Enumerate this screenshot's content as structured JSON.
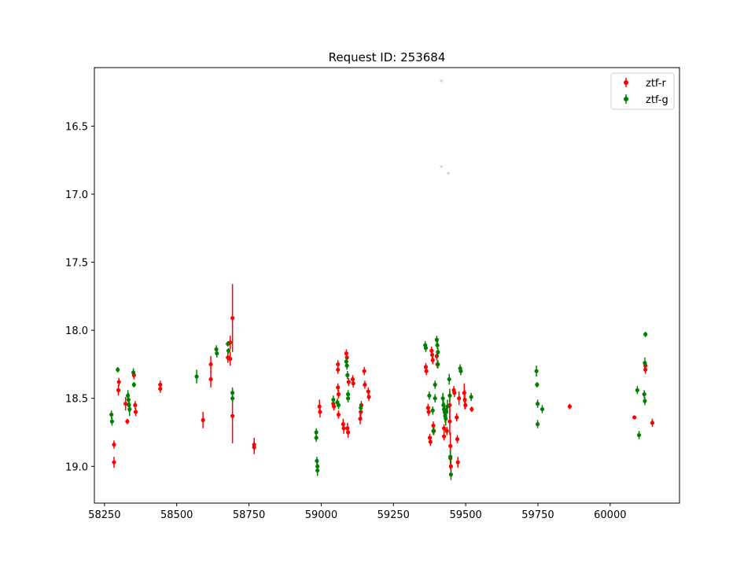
{
  "chart_data": {
    "type": "scatter",
    "title": "Request ID: 253684",
    "xlabel": "",
    "ylabel": "",
    "xlim": [
      58215,
      60240
    ],
    "ylim": [
      19.27,
      16.07
    ],
    "y_inverted": true,
    "xticks": [
      58250,
      58500,
      58750,
      59000,
      59250,
      59500,
      59750,
      60000
    ],
    "yticks": [
      16.5,
      17.0,
      17.5,
      18.0,
      18.5,
      19.0
    ],
    "grid": false,
    "legend_position": "top-right",
    "series": [
      {
        "name": "ztf-r",
        "color": "#ff0000",
        "marker": "circle-with-errorbar",
        "points": [
          {
            "x": 58283,
            "y": 18.84,
            "err": 0.03
          },
          {
            "x": 58283,
            "y": 18.97,
            "err": 0.04
          },
          {
            "x": 58298,
            "y": 18.44,
            "err": 0.04
          },
          {
            "x": 58300,
            "y": 18.38,
            "err": 0.03
          },
          {
            "x": 58323,
            "y": 18.54,
            "err": 0.05
          },
          {
            "x": 58329,
            "y": 18.67,
            "err": 0.02
          },
          {
            "x": 58352,
            "y": 18.33,
            "err": 0.03
          },
          {
            "x": 58356,
            "y": 18.55,
            "err": 0.03
          },
          {
            "x": 58358,
            "y": 18.6,
            "err": 0.03
          },
          {
            "x": 58443,
            "y": 18.4,
            "err": 0.03
          },
          {
            "x": 58443,
            "y": 18.43,
            "err": 0.03
          },
          {
            "x": 58591,
            "y": 18.66,
            "err": 0.06
          },
          {
            "x": 58618,
            "y": 18.25,
            "err": 0.06
          },
          {
            "x": 58618,
            "y": 18.36,
            "err": 0.06
          },
          {
            "x": 58677,
            "y": 18.2,
            "err": 0.04
          },
          {
            "x": 58685,
            "y": 18.09,
            "err": 0.05
          },
          {
            "x": 58685,
            "y": 18.21,
            "err": 0.05
          },
          {
            "x": 58693,
            "y": 17.91,
            "err": 0.25
          },
          {
            "x": 58693,
            "y": 18.63,
            "err": 0.2
          },
          {
            "x": 58768,
            "y": 18.84,
            "err": 0.05
          },
          {
            "x": 58768,
            "y": 18.86,
            "err": 0.05
          },
          {
            "x": 58994,
            "y": 18.56,
            "err": 0.05
          },
          {
            "x": 58996,
            "y": 18.6,
            "err": 0.04
          },
          {
            "x": 59042,
            "y": 18.54,
            "err": 0.03
          },
          {
            "x": 59044,
            "y": 18.56,
            "err": 0.03
          },
          {
            "x": 59058,
            "y": 18.25,
            "err": 0.03
          },
          {
            "x": 59058,
            "y": 18.29,
            "err": 0.03
          },
          {
            "x": 59058,
            "y": 18.42,
            "err": 0.03
          },
          {
            "x": 59060,
            "y": 18.47,
            "err": 0.03
          },
          {
            "x": 59060,
            "y": 18.62,
            "err": 0.03
          },
          {
            "x": 59076,
            "y": 18.69,
            "err": 0.04
          },
          {
            "x": 59078,
            "y": 18.72,
            "err": 0.04
          },
          {
            "x": 59087,
            "y": 18.17,
            "err": 0.03
          },
          {
            "x": 59089,
            "y": 18.2,
            "err": 0.03
          },
          {
            "x": 59091,
            "y": 18.72,
            "err": 0.04
          },
          {
            "x": 59093,
            "y": 18.75,
            "err": 0.04
          },
          {
            "x": 59095,
            "y": 18.38,
            "err": 0.03
          },
          {
            "x": 59109,
            "y": 18.36,
            "err": 0.03
          },
          {
            "x": 59111,
            "y": 18.39,
            "err": 0.03
          },
          {
            "x": 59135,
            "y": 18.65,
            "err": 0.04
          },
          {
            "x": 59137,
            "y": 18.6,
            "err": 0.04
          },
          {
            "x": 59139,
            "y": 18.55,
            "err": 0.03
          },
          {
            "x": 59149,
            "y": 18.3,
            "err": 0.03
          },
          {
            "x": 59151,
            "y": 18.4,
            "err": 0.03
          },
          {
            "x": 59163,
            "y": 18.45,
            "err": 0.03
          },
          {
            "x": 59165,
            "y": 18.49,
            "err": 0.03
          },
          {
            "x": 59362,
            "y": 18.27,
            "err": 0.03
          },
          {
            "x": 59364,
            "y": 18.3,
            "err": 0.03
          },
          {
            "x": 59370,
            "y": 18.57,
            "err": 0.03
          },
          {
            "x": 59372,
            "y": 18.6,
            "err": 0.03
          },
          {
            "x": 59376,
            "y": 18.79,
            "err": 0.03
          },
          {
            "x": 59378,
            "y": 18.82,
            "err": 0.03
          },
          {
            "x": 59382,
            "y": 18.15,
            "err": 0.03
          },
          {
            "x": 59384,
            "y": 18.18,
            "err": 0.03
          },
          {
            "x": 59386,
            "y": 18.22,
            "err": 0.03
          },
          {
            "x": 59388,
            "y": 18.7,
            "err": 0.03
          },
          {
            "x": 59390,
            "y": 18.74,
            "err": 0.03
          },
          {
            "x": 59400,
            "y": 18.19,
            "err": 0.03
          },
          {
            "x": 59402,
            "y": 18.25,
            "err": 0.03
          },
          {
            "x": 59425,
            "y": 18.72,
            "err": 0.03
          },
          {
            "x": 59425,
            "y": 18.78,
            "err": 0.03
          },
          {
            "x": 59435,
            "y": 18.74,
            "err": 0.03
          },
          {
            "x": 59445,
            "y": 18.55,
            "err": 0.1
          },
          {
            "x": 59445,
            "y": 18.67,
            "err": 0.1
          },
          {
            "x": 59447,
            "y": 18.85,
            "err": 0.1
          },
          {
            "x": 59447,
            "y": 18.94,
            "err": 0.08
          },
          {
            "x": 59449,
            "y": 19.0,
            "err": 0.06
          },
          {
            "x": 59459,
            "y": 18.44,
            "err": 0.03
          },
          {
            "x": 59461,
            "y": 18.46,
            "err": 0.03
          },
          {
            "x": 59469,
            "y": 18.64,
            "err": 0.03
          },
          {
            "x": 59471,
            "y": 18.8,
            "err": 0.03
          },
          {
            "x": 59473,
            "y": 18.97,
            "err": 0.04
          },
          {
            "x": 59477,
            "y": 18.5,
            "err": 0.05
          },
          {
            "x": 59495,
            "y": 18.46,
            "err": 0.07
          },
          {
            "x": 59497,
            "y": 18.51,
            "err": 0.07
          },
          {
            "x": 59499,
            "y": 18.55,
            "err": 0.03
          },
          {
            "x": 59521,
            "y": 18.58,
            "err": 0.02
          },
          {
            "x": 59860,
            "y": 18.56,
            "err": 0.02
          },
          {
            "x": 60084,
            "y": 18.64,
            "err": 0.01
          },
          {
            "x": 60122,
            "y": 18.26,
            "err": 0.03
          },
          {
            "x": 60122,
            "y": 18.29,
            "err": 0.03
          },
          {
            "x": 60146,
            "y": 18.68,
            "err": 0.03
          }
        ]
      },
      {
        "name": "ztf-g",
        "color": "#008000",
        "marker": "circle-with-errorbar",
        "points": [
          {
            "x": 58274,
            "y": 18.62,
            "err": 0.03
          },
          {
            "x": 58276,
            "y": 18.67,
            "err": 0.03
          },
          {
            "x": 58296,
            "y": 18.29,
            "err": 0.02
          },
          {
            "x": 58331,
            "y": 18.48,
            "err": 0.04
          },
          {
            "x": 58333,
            "y": 18.51,
            "err": 0.05
          },
          {
            "x": 58335,
            "y": 18.55,
            "err": 0.05
          },
          {
            "x": 58337,
            "y": 18.58,
            "err": 0.05
          },
          {
            "x": 58350,
            "y": 18.31,
            "err": 0.03
          },
          {
            "x": 58352,
            "y": 18.4,
            "err": 0.02
          },
          {
            "x": 58569,
            "y": 18.34,
            "err": 0.05
          },
          {
            "x": 58637,
            "y": 18.14,
            "err": 0.03
          },
          {
            "x": 58639,
            "y": 18.17,
            "err": 0.03
          },
          {
            "x": 58677,
            "y": 18.1,
            "err": 0.02
          },
          {
            "x": 58679,
            "y": 18.15,
            "err": 0.02
          },
          {
            "x": 58693,
            "y": 18.46,
            "err": 0.04
          },
          {
            "x": 58693,
            "y": 18.5,
            "err": 0.04
          },
          {
            "x": 58983,
            "y": 18.75,
            "err": 0.03
          },
          {
            "x": 58983,
            "y": 18.79,
            "err": 0.03
          },
          {
            "x": 58985,
            "y": 18.96,
            "err": 0.03
          },
          {
            "x": 58987,
            "y": 19.0,
            "err": 0.04
          },
          {
            "x": 58987,
            "y": 19.03,
            "err": 0.04
          },
          {
            "x": 59042,
            "y": 18.51,
            "err": 0.03
          },
          {
            "x": 59056,
            "y": 18.53,
            "err": 0.03
          },
          {
            "x": 59060,
            "y": 18.55,
            "err": 0.03
          },
          {
            "x": 59087,
            "y": 18.23,
            "err": 0.03
          },
          {
            "x": 59089,
            "y": 18.26,
            "err": 0.03
          },
          {
            "x": 59091,
            "y": 18.33,
            "err": 0.03
          },
          {
            "x": 59093,
            "y": 18.47,
            "err": 0.03
          },
          {
            "x": 59093,
            "y": 18.5,
            "err": 0.03
          },
          {
            "x": 59137,
            "y": 18.57,
            "err": 0.03
          },
          {
            "x": 59360,
            "y": 18.11,
            "err": 0.03
          },
          {
            "x": 59362,
            "y": 18.13,
            "err": 0.03
          },
          {
            "x": 59374,
            "y": 18.48,
            "err": 0.03
          },
          {
            "x": 59386,
            "y": 18.59,
            "err": 0.03
          },
          {
            "x": 59388,
            "y": 18.74,
            "err": 0.03
          },
          {
            "x": 59394,
            "y": 18.4,
            "err": 0.03
          },
          {
            "x": 59394,
            "y": 18.5,
            "err": 0.03
          },
          {
            "x": 59400,
            "y": 18.07,
            "err": 0.03
          },
          {
            "x": 59402,
            "y": 18.11,
            "err": 0.03
          },
          {
            "x": 59404,
            "y": 18.16,
            "err": 0.03
          },
          {
            "x": 59404,
            "y": 18.25,
            "err": 0.03
          },
          {
            "x": 59421,
            "y": 18.5,
            "err": 0.04
          },
          {
            "x": 59423,
            "y": 18.55,
            "err": 0.04
          },
          {
            "x": 59425,
            "y": 18.58,
            "err": 0.05
          },
          {
            "x": 59427,
            "y": 18.6,
            "err": 0.05
          },
          {
            "x": 59429,
            "y": 18.63,
            "err": 0.05
          },
          {
            "x": 59431,
            "y": 18.65,
            "err": 0.05
          },
          {
            "x": 59433,
            "y": 18.6,
            "err": 0.05
          },
          {
            "x": 59437,
            "y": 18.56,
            "err": 0.05
          },
          {
            "x": 59443,
            "y": 18.36,
            "err": 0.04
          },
          {
            "x": 59445,
            "y": 18.48,
            "err": 0.05
          },
          {
            "x": 59447,
            "y": 18.93,
            "err": 0.05
          },
          {
            "x": 59449,
            "y": 19.06,
            "err": 0.04
          },
          {
            "x": 59481,
            "y": 18.28,
            "err": 0.03
          },
          {
            "x": 59483,
            "y": 18.3,
            "err": 0.03
          },
          {
            "x": 59519,
            "y": 18.49,
            "err": 0.03
          },
          {
            "x": 59745,
            "y": 18.3,
            "err": 0.04
          },
          {
            "x": 59747,
            "y": 18.4,
            "err": 0.02
          },
          {
            "x": 59749,
            "y": 18.54,
            "err": 0.03
          },
          {
            "x": 59749,
            "y": 18.69,
            "err": 0.03
          },
          {
            "x": 59765,
            "y": 18.58,
            "err": 0.03
          },
          {
            "x": 60094,
            "y": 18.44,
            "err": 0.03
          },
          {
            "x": 60100,
            "y": 18.77,
            "err": 0.03
          },
          {
            "x": 60118,
            "y": 18.47,
            "err": 0.03
          },
          {
            "x": 60120,
            "y": 18.52,
            "err": 0.03
          },
          {
            "x": 60120,
            "y": 18.24,
            "err": 0.04
          },
          {
            "x": 60122,
            "y": 18.03,
            "err": 0.02
          }
        ]
      },
      {
        "color": "#d3d3d3",
        "marker": "triangle-down",
        "points": [
          {
            "x": 59416,
            "y": 16.17
          },
          {
            "x": 59416,
            "y": 16.8
          },
          {
            "x": 59440,
            "y": 16.85
          }
        ]
      }
    ]
  },
  "legend": {
    "items": [
      {
        "label": "ztf-r",
        "color": "#ff0000"
      },
      {
        "label": "ztf-g",
        "color": "#008000"
      }
    ]
  }
}
